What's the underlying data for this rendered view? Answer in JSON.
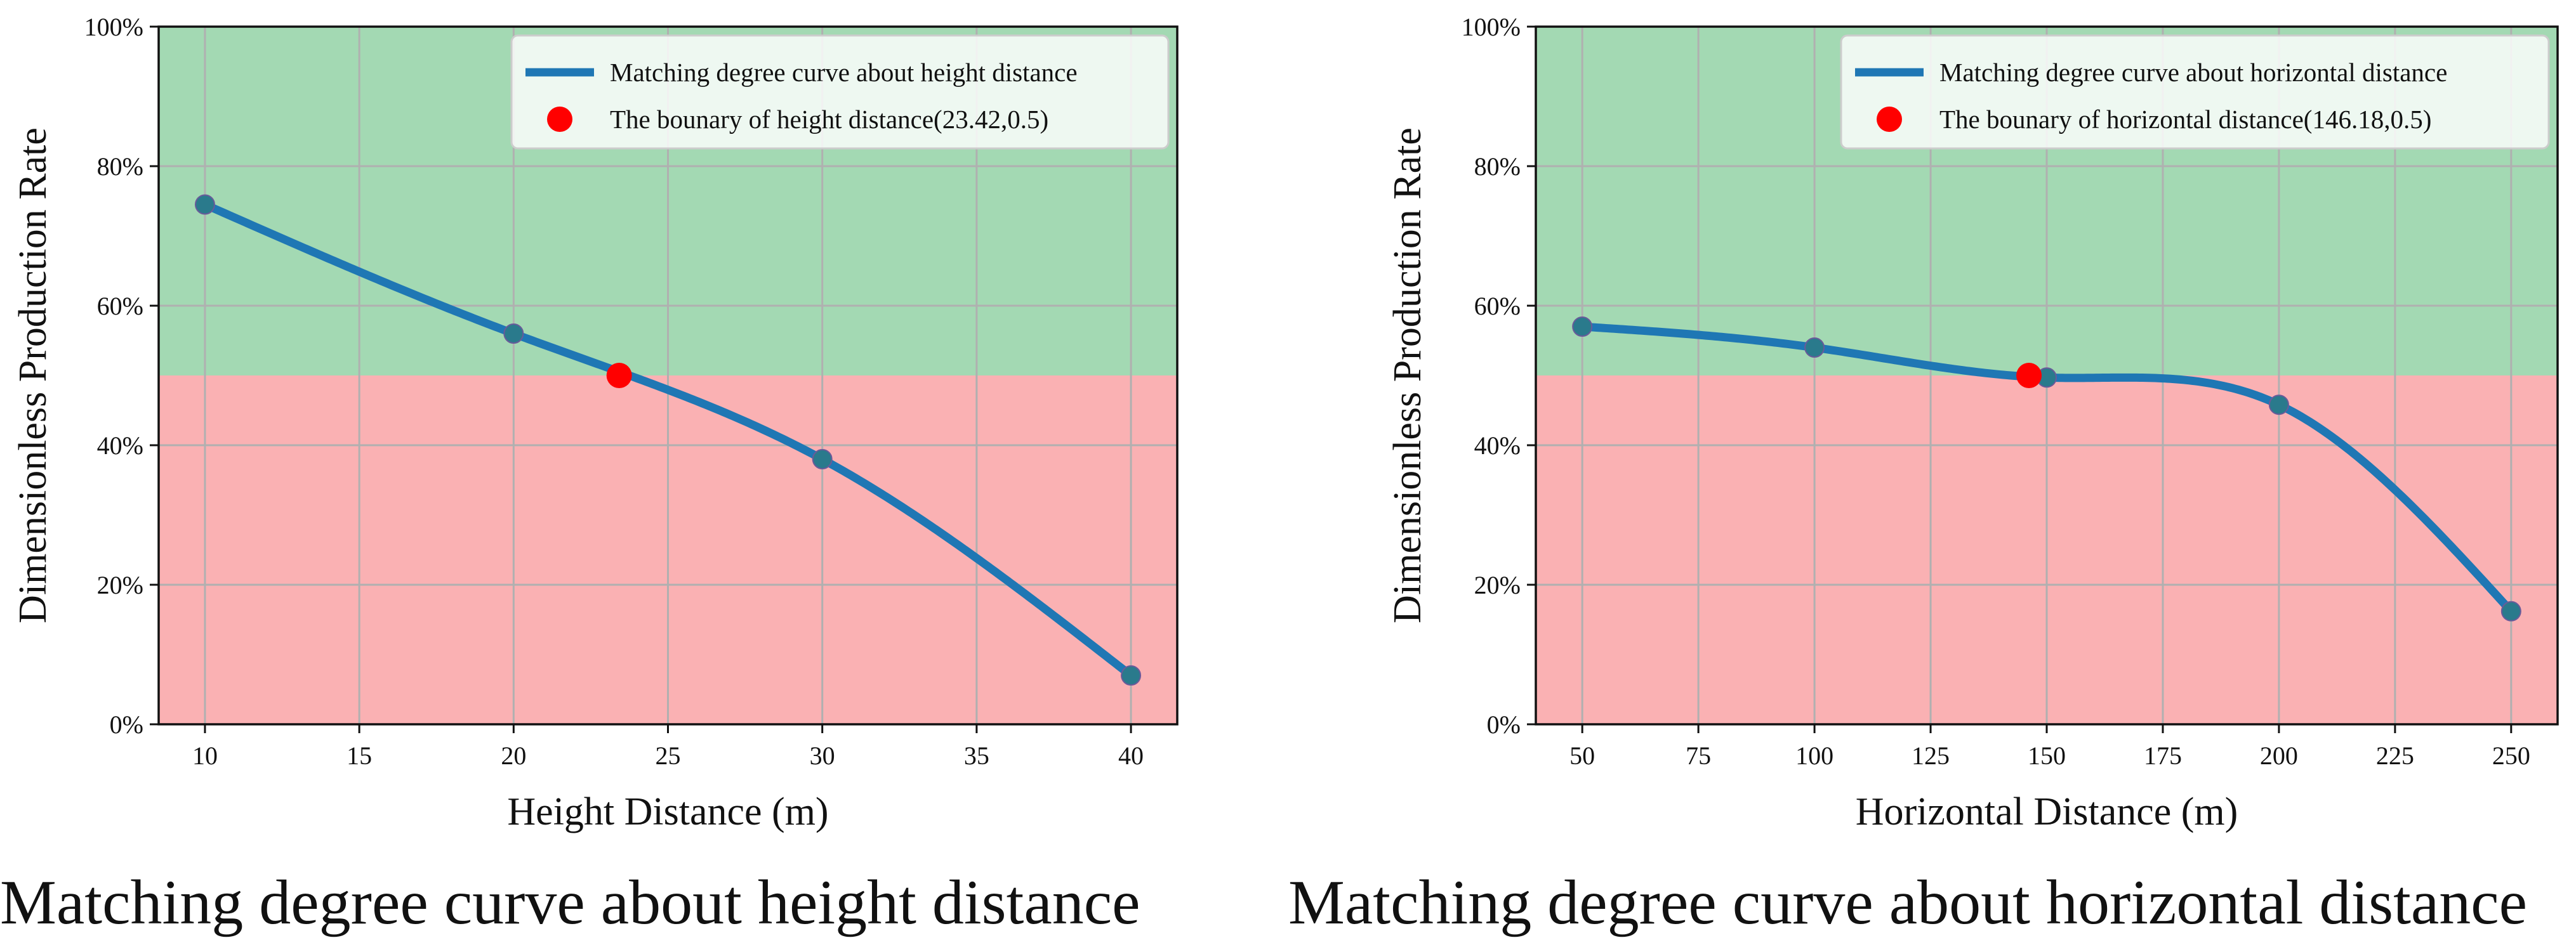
{
  "chart_data": [
    {
      "type": "line",
      "title": "",
      "caption": "Matching degree curve about height distance",
      "xlabel": "Height Distance (m)",
      "ylabel": "Dimensionless Production Rate",
      "xlim": [
        8.5,
        41.5
      ],
      "ylim": [
        0,
        1
      ],
      "xticks": [
        10,
        15,
        20,
        25,
        30,
        35,
        40
      ],
      "yticks": [
        0,
        0.2,
        0.4,
        0.6,
        0.8,
        1.0
      ],
      "ytick_labels": [
        "0%",
        "20%",
        "40%",
        "60%",
        "80%",
        "100%"
      ],
      "grid": true,
      "threshold": 0.5,
      "regions": [
        {
          "name": "above-threshold",
          "from": 0.5,
          "to": 1.0,
          "color": "#a3d9b3"
        },
        {
          "name": "below-threshold",
          "from": 0.0,
          "to": 0.5,
          "color": "#fab1b3"
        }
      ],
      "series": [
        {
          "name": "Matching degree curve about height distance",
          "color": "#1f77b4",
          "x": [
            10,
            20,
            30,
            40
          ],
          "y": [
            0.745,
            0.56,
            0.38,
            0.07
          ]
        }
      ],
      "boundary_point": {
        "name": "The bounary of height distance(23.42,0.5)",
        "x": 23.42,
        "y": 0.5,
        "color": "#ff0000"
      },
      "legend_position": "top-right"
    },
    {
      "type": "line",
      "title": "",
      "caption": "Matching degree curve about horizontal distance",
      "xlabel": "Horizontal Distance (m)",
      "ylabel": "Dimensionless Production Rate",
      "xlim": [
        40,
        260
      ],
      "ylim": [
        0,
        1
      ],
      "xticks": [
        50,
        75,
        100,
        125,
        150,
        175,
        200,
        225,
        250
      ],
      "yticks": [
        0,
        0.2,
        0.4,
        0.6,
        0.8,
        1.0
      ],
      "ytick_labels": [
        "0%",
        "20%",
        "40%",
        "60%",
        "80%",
        "100%"
      ],
      "grid": true,
      "threshold": 0.5,
      "regions": [
        {
          "name": "above-threshold",
          "from": 0.5,
          "to": 1.0,
          "color": "#a3d9b3"
        },
        {
          "name": "below-threshold",
          "from": 0.0,
          "to": 0.5,
          "color": "#fab1b3"
        }
      ],
      "series": [
        {
          "name": "Matching degree curve about horizontal distance",
          "color": "#1f77b4",
          "x": [
            50,
            100,
            150,
            200,
            250
          ],
          "y": [
            0.57,
            0.54,
            0.497,
            0.458,
            0.162
          ]
        }
      ],
      "boundary_point": {
        "name": "The bounary of horizontal distance(146.18,0.5)",
        "x": 146.18,
        "y": 0.5,
        "color": "#ff0000"
      },
      "legend_position": "top-right"
    }
  ]
}
